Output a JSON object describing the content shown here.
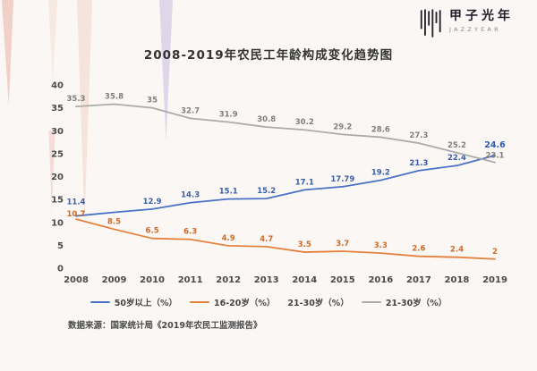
{
  "logo": {
    "name": "甲子光年",
    "subtitle": "JAZZYEAR"
  },
  "title": "2008-2019年农民工年龄构成变化趋势图",
  "footer": "数据来源：国家统计局《2019年农民工监测报告》",
  "chart_data": {
    "type": "line",
    "title": "2008-2019年农民工年龄构成变化趋势图",
    "x": [
      "2008",
      "2009",
      "2010",
      "2011",
      "2012",
      "2013",
      "2014",
      "2015",
      "2016",
      "2017",
      "2018",
      "2019"
    ],
    "ylim": [
      0,
      40
    ],
    "yticks": [
      0,
      5,
      10,
      15,
      20,
      25,
      30,
      35,
      40
    ],
    "grid": false,
    "legend_position": "bottom",
    "series": [
      {
        "name": "50岁以上（%）",
        "color": "#4a72c4",
        "label_color": "#3a5ea8",
        "values": [
          11.4,
          12.2,
          12.9,
          14.3,
          15.1,
          15.2,
          17.1,
          17.79,
          19.2,
          21.3,
          22.4,
          24.6
        ],
        "labels": [
          "11.4",
          null,
          "12.9",
          "14.3",
          "15.1",
          "15.2",
          "17.1",
          "17.79",
          "19.2",
          "21.3",
          "22.4",
          "24.6"
        ]
      },
      {
        "name": "16-20岁（%）",
        "color": "#e5813e",
        "label_color": "#d06a28",
        "values": [
          10.7,
          8.5,
          6.5,
          6.3,
          4.9,
          4.7,
          3.5,
          3.7,
          3.3,
          2.6,
          2.4,
          2
        ],
        "labels": [
          "10.7",
          "8.5",
          "6.5",
          "6.3",
          "4.9",
          "4.7",
          "3.5",
          "3.7",
          "3.3",
          "2.6",
          "2.4",
          "2"
        ]
      },
      {
        "name": "21-30岁（%）",
        "color": "#ababab",
        "label_color": "#7f7f7f",
        "values": [
          35.3,
          35.8,
          35,
          32.7,
          31.9,
          30.8,
          30.2,
          29.2,
          28.6,
          27.3,
          25.2,
          23.1
        ],
        "labels": [
          "35.3",
          "35.8",
          "35",
          "32.7",
          "31.9",
          "30.8",
          "30.2",
          "29.2",
          "28.6",
          "27.3",
          "25.2",
          "23.1"
        ]
      }
    ],
    "legend": [
      {
        "label": "50岁以上（%）",
        "color": "#4a72c4"
      },
      {
        "label": "16-20岁（%）",
        "color": "#e5813e"
      },
      {
        "label": "21-30岁（%）",
        "color": "transparent"
      },
      {
        "label": "21-30岁（%）",
        "color": "#ababab"
      }
    ]
  }
}
